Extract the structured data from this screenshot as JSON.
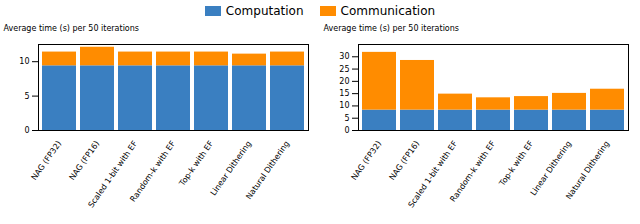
{
  "chart_data": [
    {
      "type": "bar",
      "stacked": true,
      "categories": [
        "NAG (FP32)",
        "NAG (FP16)",
        "Scaled 1-bit with EF",
        "Random-k with EF",
        "Top-k with EF",
        "Linear Dithering",
        "Natural Dithering"
      ],
      "series": [
        {
          "name": "Computation",
          "color": "#3a7fc1",
          "values": [
            9.4,
            9.4,
            9.4,
            9.4,
            9.4,
            9.4,
            9.4
          ]
        },
        {
          "name": "Communication",
          "color": "#ff8c00",
          "values": [
            2.0,
            2.7,
            2.0,
            2.0,
            2.0,
            1.7,
            2.0
          ]
        }
      ],
      "ylabel": "Average time (s) per 50 iterations",
      "ylim": [
        0,
        12.5
      ],
      "yticks": [
        0,
        5,
        10
      ],
      "legend": "top"
    },
    {
      "type": "bar",
      "stacked": true,
      "categories": [
        "NAG (FP32)",
        "NAG (FP16)",
        "Scaled 1-bit with EF",
        "Random-k with EF",
        "Top-k with EF",
        "Linear Dithering",
        "Natural Dithering"
      ],
      "series": [
        {
          "name": "Computation",
          "color": "#3a7fc1",
          "values": [
            8.3,
            8.3,
            8.3,
            8.3,
            8.3,
            8.3,
            8.3
          ]
        },
        {
          "name": "Communication",
          "color": "#ff8c00",
          "values": [
            23.5,
            20.2,
            6.5,
            5.0,
            5.5,
            6.8,
            8.5
          ]
        }
      ],
      "ylabel": "Average time (s) per 50 iterations",
      "ylim": [
        0,
        35
      ],
      "yticks": [
        0,
        5,
        10,
        15,
        20,
        25,
        30
      ],
      "legend": "top"
    }
  ]
}
